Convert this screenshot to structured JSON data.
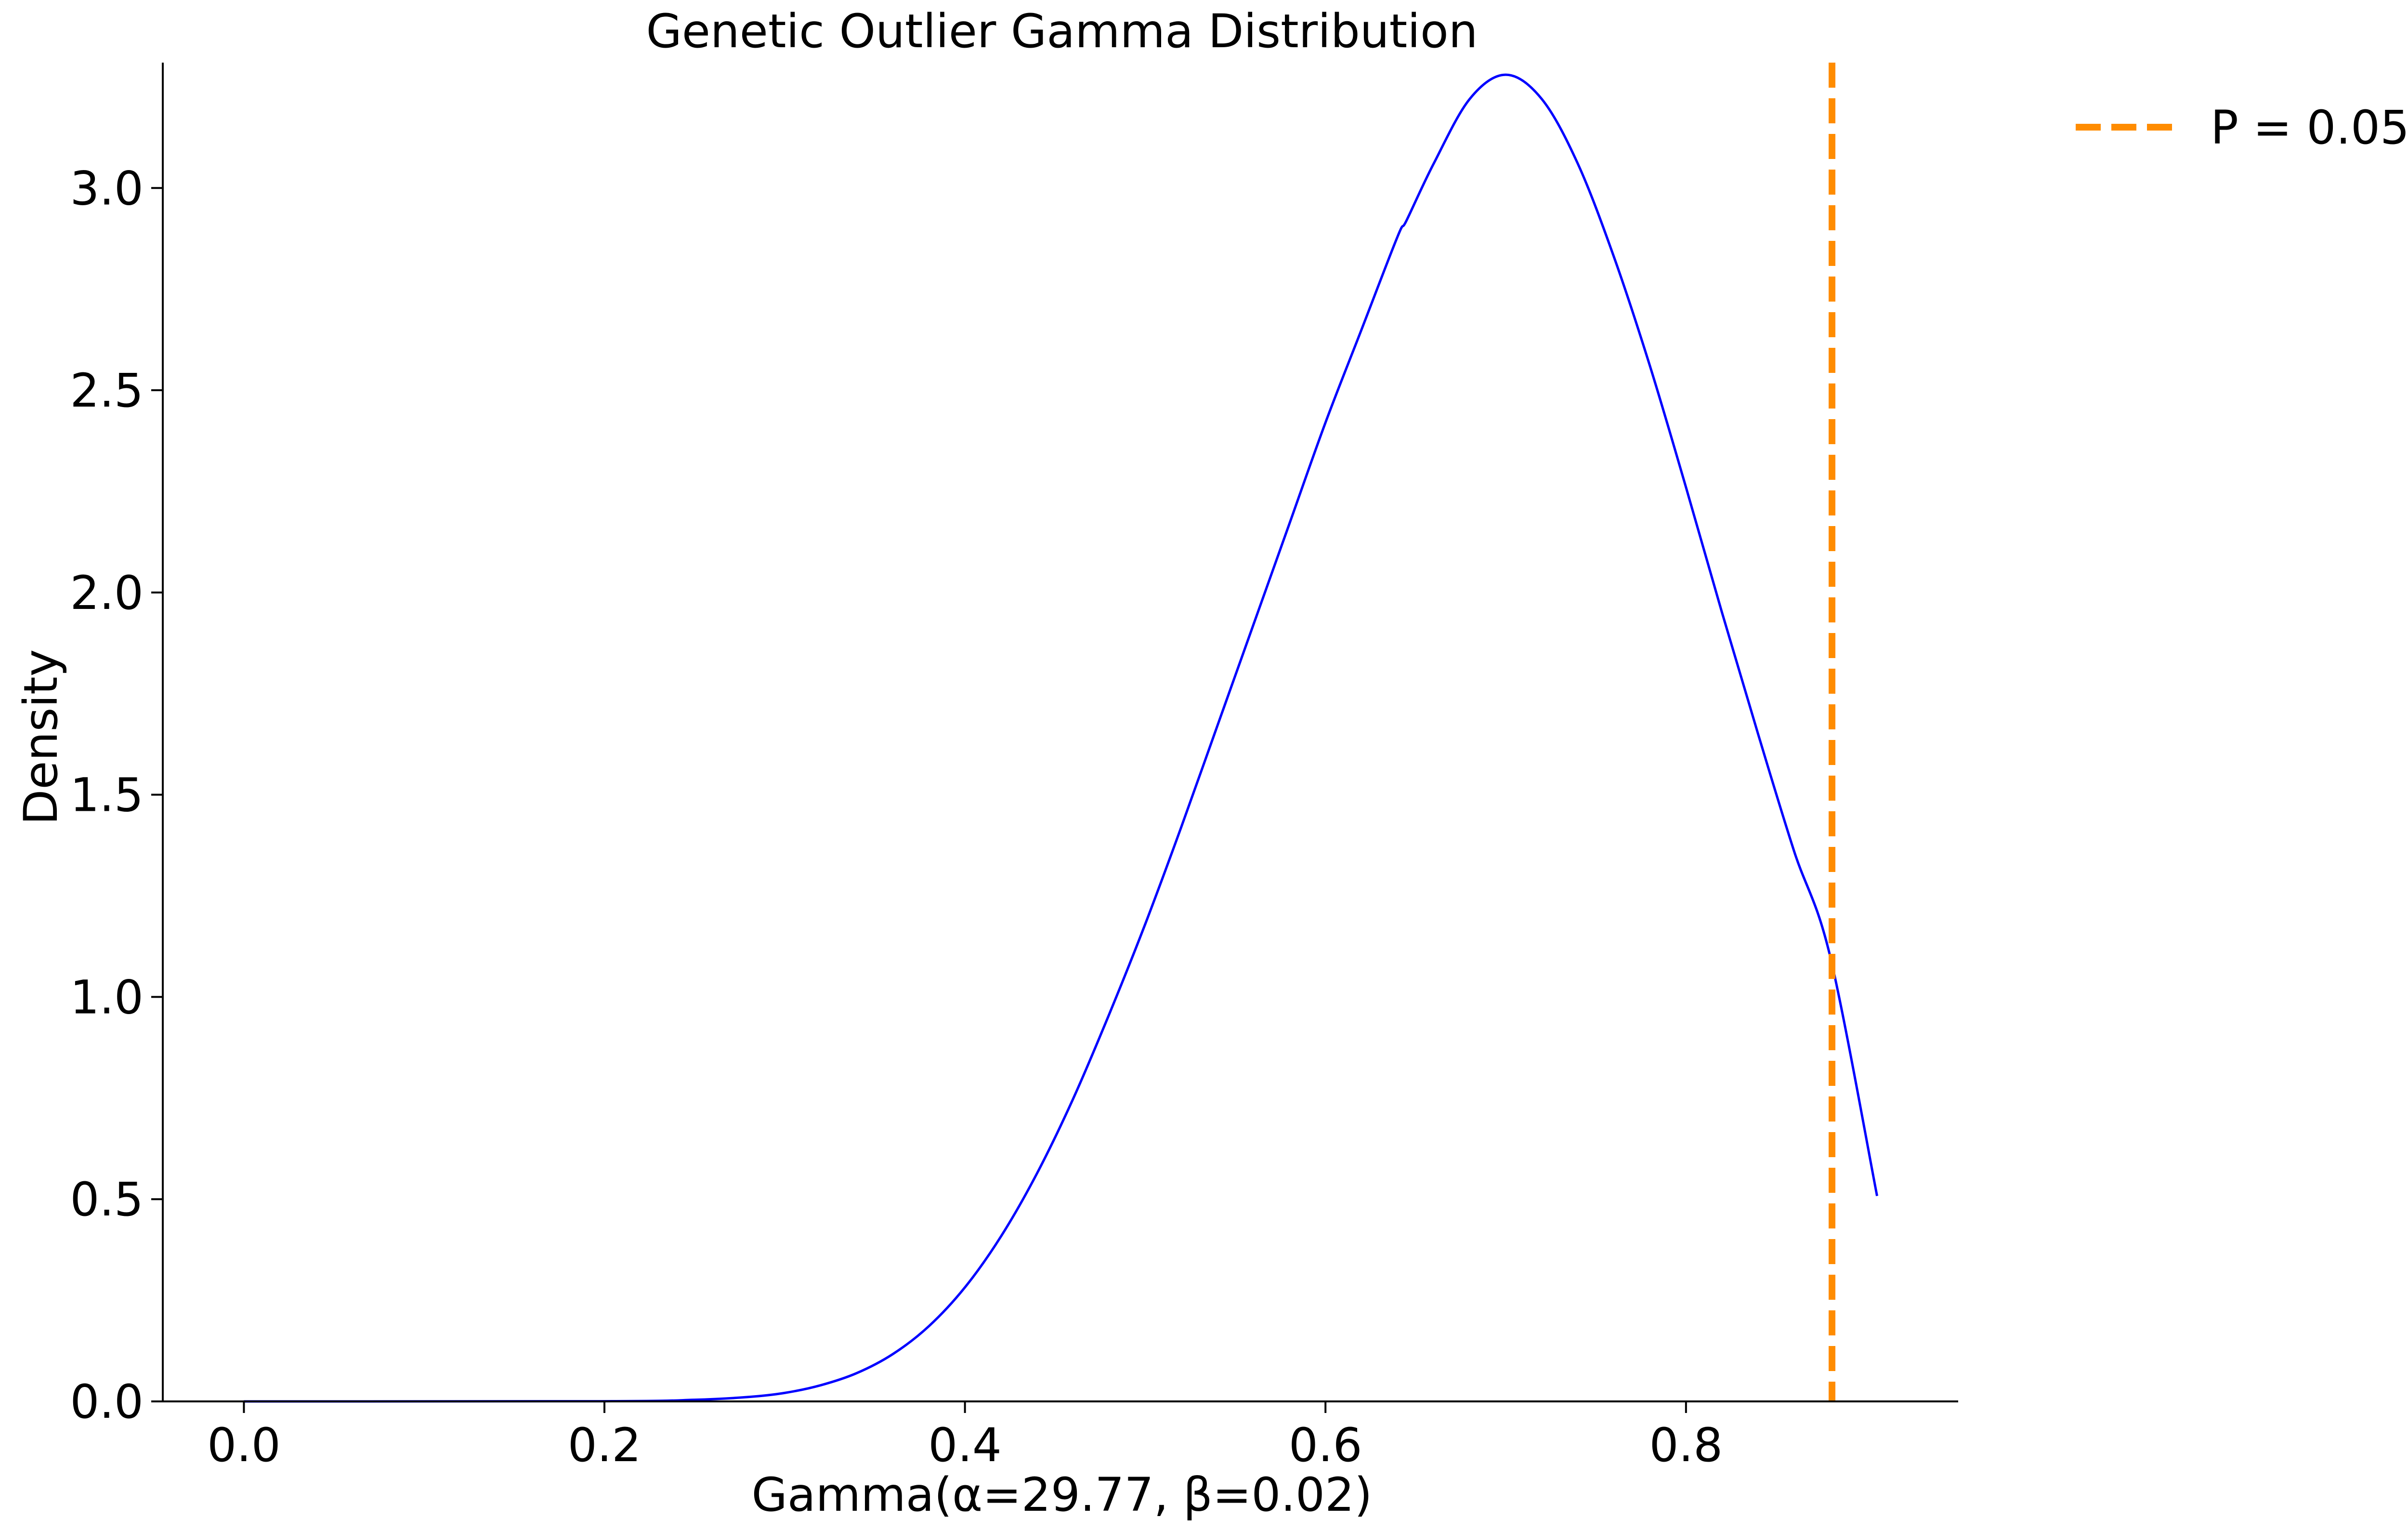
{
  "chart_data": {
    "type": "line",
    "title": "Genetic Outlier Gamma Distribution",
    "xlabel": "Gamma(α=29.77, β=0.02)",
    "ylabel": "Density",
    "xlim": [
      -0.045,
      0.951
    ],
    "ylim": [
      0.0,
      3.31
    ],
    "xticks": [
      0.0,
      0.2,
      0.4,
      0.6,
      0.8
    ],
    "xtick_labels": [
      "0.0",
      "0.2",
      "0.4",
      "0.6",
      "0.8"
    ],
    "yticks": [
      0.0,
      0.5,
      1.0,
      1.5,
      2.0,
      2.5,
      3.0
    ],
    "ytick_labels": [
      "0.0",
      "0.5",
      "1.0",
      "1.5",
      "2.0",
      "2.5",
      "3.0"
    ],
    "grid": false,
    "legend_position": "outside-top-right",
    "series": [
      {
        "kind": "curve",
        "color": "#0000ff",
        "x": [
          0.0,
          0.2,
          0.25,
          0.28,
          0.3,
          0.32,
          0.34,
          0.36,
          0.38,
          0.4,
          0.42,
          0.44,
          0.46,
          0.48,
          0.5,
          0.52,
          0.54,
          0.56,
          0.58,
          0.6,
          0.62,
          0.64,
          0.645,
          0.66,
          0.68,
          0.7,
          0.72,
          0.74,
          0.76,
          0.78,
          0.8,
          0.82,
          0.84,
          0.86,
          0.88,
          0.906
        ],
        "y": [
          0.0,
          0.0005,
          0.004,
          0.011,
          0.021,
          0.04,
          0.07,
          0.117,
          0.186,
          0.282,
          0.408,
          0.564,
          0.748,
          0.957,
          1.18,
          1.42,
          1.67,
          1.92,
          2.17,
          2.42,
          2.65,
          2.88,
          2.92,
          3.06,
          3.22,
          3.28,
          3.22,
          3.06,
          2.83,
          2.56,
          2.26,
          1.95,
          1.65,
          1.36,
          1.1,
          0.508
        ]
      },
      {
        "name": "P = 0.05",
        "kind": "vline",
        "color": "#ff8c00",
        "dash": "dashed",
        "x": 0.881
      }
    ]
  }
}
